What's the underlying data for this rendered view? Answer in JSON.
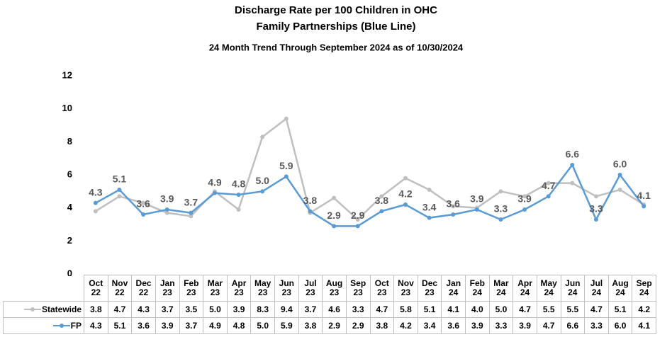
{
  "chart_data": {
    "type": "line",
    "title": "Discharge Rate per 100 Children in OHC",
    "subtitle": "Family Partnerships (Blue Line)",
    "caption": "24 Month Trend Through September 2024 as of 10/30/2024",
    "categories": [
      "Oct 22",
      "Nov 22",
      "Dec 22",
      "Jan 23",
      "Feb 23",
      "Mar 23",
      "Apr 23",
      "May 23",
      "Jun 23",
      "Jul 23",
      "Aug 23",
      "Sep 23",
      "Oct 23",
      "Nov 23",
      "Dec 23",
      "Jan 24",
      "Feb 24",
      "Mar 24",
      "Apr 24",
      "May 24",
      "Jun 24",
      "Jul 24",
      "Aug 24",
      "Sep 24"
    ],
    "series": [
      {
        "name": "Statewide",
        "color": "#bfbfbf",
        "values": [
          3.8,
          4.7,
          4.3,
          3.7,
          3.5,
          5.0,
          3.9,
          8.3,
          9.4,
          3.7,
          4.6,
          3.3,
          4.7,
          5.8,
          5.1,
          4.1,
          4.0,
          5.0,
          4.7,
          5.5,
          5.5,
          4.7,
          5.1,
          4.2
        ],
        "value_labels": [
          "3.8",
          "4.7",
          "4.3",
          "3.7",
          "3.5",
          "5.0",
          "3.9",
          "8.3",
          "9.4",
          "3.7",
          "4.6",
          "3.3",
          "4.7",
          "5.8",
          "5.1",
          "4.1",
          "4.0",
          "5.0",
          "4.7",
          "5.5",
          "5.5",
          "4.7",
          "5.1",
          "4.2"
        ]
      },
      {
        "name": "FP",
        "color": "#5b9bd5",
        "values": [
          4.3,
          5.1,
          3.6,
          3.9,
          3.7,
          4.9,
          4.8,
          5.0,
          5.9,
          3.8,
          2.9,
          2.9,
          3.8,
          4.2,
          3.4,
          3.6,
          3.9,
          3.3,
          3.9,
          4.7,
          6.6,
          3.3,
          6.0,
          4.1
        ],
        "value_labels": [
          "4.3",
          "5.1",
          "3.6",
          "3.9",
          "3.7",
          "4.9",
          "4.8",
          "5.0",
          "5.9",
          "3.8",
          "2.9",
          "2.9",
          "3.8",
          "4.2",
          "3.4",
          "3.6",
          "3.9",
          "3.3",
          "3.9",
          "4.7",
          "6.6",
          "3.3",
          "6.0",
          "4.1"
        ],
        "data_labels": true
      }
    ],
    "ylim": [
      0,
      12
    ],
    "yticks": [
      0,
      2,
      4,
      6,
      8,
      10,
      12
    ],
    "grid": false
  }
}
